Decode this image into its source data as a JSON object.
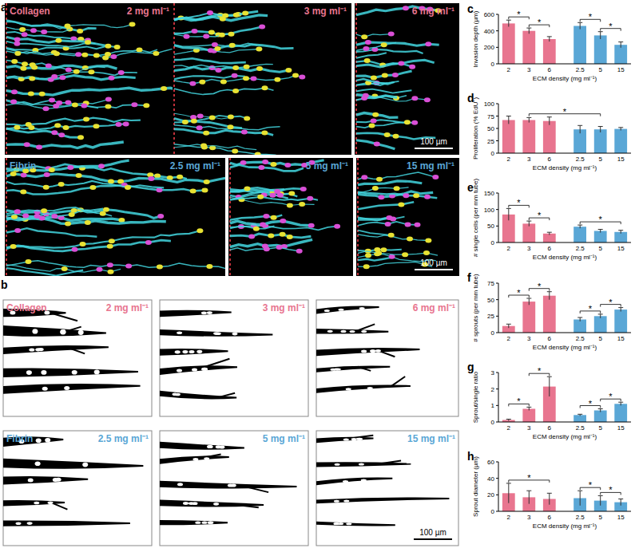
{
  "image_panels": {
    "a": {
      "panel": "a",
      "scale_bar": "100 µm",
      "rows": [
        {
          "material": "Collagen",
          "color": "#e8758f",
          "densities": [
            "2 mg ml⁻¹",
            "3 mg ml⁻¹",
            "6 mg ml⁻¹"
          ]
        },
        {
          "material": "Fibrin",
          "color": "#5aa7d6",
          "densities": [
            "2.5 mg ml⁻¹",
            "5 mg ml⁻¹",
            "15 mg ml⁻¹"
          ]
        }
      ]
    },
    "b": {
      "panel": "b",
      "scale_bar": "100 µm",
      "rows": [
        {
          "material": "Collagen",
          "color": "#e8758f",
          "densities": [
            "2 mg ml⁻¹",
            "3 mg ml⁻¹",
            "6 mg ml⁻¹"
          ]
        },
        {
          "material": "Fibrin",
          "color": "#5aa7d6",
          "densities": [
            "2.5 mg ml⁻¹",
            "5 mg ml⁻¹",
            "15 mg ml⁻¹"
          ]
        }
      ]
    }
  },
  "chart_data": [
    {
      "type": "bar",
      "panel": "c",
      "y_label": "Invasion depth (µm)",
      "x_label": "ECM density (mg ml⁻¹)",
      "categories": [
        "2",
        "3",
        "6",
        "2.5",
        "5",
        "15"
      ],
      "values": [
        490,
        400,
        300,
        460,
        345,
        230
      ],
      "errors": [
        40,
        35,
        30,
        40,
        45,
        35
      ],
      "colors": [
        "#e8758f",
        "#e8758f",
        "#e8758f",
        "#5aa7d6",
        "#5aa7d6",
        "#5aa7d6"
      ],
      "ylim": [
        0,
        600
      ],
      "yticks": [
        0,
        200,
        400,
        600
      ],
      "annotations": [
        {
          "text": "*",
          "between": [
            0,
            1
          ]
        },
        {
          "text": "*",
          "between": [
            1,
            2
          ]
        },
        {
          "text": "*",
          "between": [
            3,
            4
          ]
        },
        {
          "text": "*",
          "between": [
            4,
            5
          ]
        }
      ]
    },
    {
      "type": "bar",
      "panel": "d",
      "y_label": "Proliferation (% EdU⁺)",
      "x_label": "ECM density (mg ml⁻¹)",
      "categories": [
        "2",
        "3",
        "6",
        "2.5",
        "5",
        "15"
      ],
      "values": [
        67,
        67,
        65,
        48,
        48,
        49
      ],
      "errors": [
        8,
        5,
        8,
        8,
        6,
        3
      ],
      "colors": [
        "#e8758f",
        "#e8758f",
        "#e8758f",
        "#5aa7d6",
        "#5aa7d6",
        "#5aa7d6"
      ],
      "ylim": [
        0,
        100
      ],
      "yticks": [
        0,
        25,
        50,
        75,
        100
      ],
      "annotations": [
        {
          "text": "*",
          "between": [
            1,
            4
          ]
        }
      ]
    },
    {
      "type": "bar",
      "panel": "e",
      "y_label": "# single cells (per mm tube)",
      "x_label": "ECM density (mg ml⁻¹)",
      "categories": [
        "2",
        "3",
        "6",
        "2.5",
        "5",
        "15"
      ],
      "values": [
        85,
        57,
        27,
        48,
        35,
        32
      ],
      "errors": [
        18,
        8,
        4,
        5,
        5,
        5
      ],
      "colors": [
        "#e8758f",
        "#e8758f",
        "#e8758f",
        "#5aa7d6",
        "#5aa7d6",
        "#5aa7d6"
      ],
      "ylim": [
        0,
        150
      ],
      "yticks": [
        0,
        50,
        100,
        150
      ],
      "annotations": [
        {
          "text": "*",
          "between": [
            0,
            1
          ]
        },
        {
          "text": "*",
          "between": [
            1,
            2
          ]
        },
        {
          "text": "*",
          "between": [
            3,
            5
          ]
        }
      ]
    },
    {
      "type": "bar",
      "panel": "f",
      "y_label": "# sprouts (per mm tube)",
      "x_label": "ECM density (mg ml⁻¹)",
      "categories": [
        "2",
        "3",
        "6",
        "2.5",
        "5",
        "15"
      ],
      "values": [
        10,
        47,
        56,
        20,
        25,
        35
      ],
      "errors": [
        3,
        5,
        6,
        3,
        3,
        3
      ],
      "colors": [
        "#e8758f",
        "#e8758f",
        "#e8758f",
        "#5aa7d6",
        "#5aa7d6",
        "#5aa7d6"
      ],
      "ylim": [
        0,
        75
      ],
      "yticks": [
        0,
        25,
        50,
        75
      ],
      "annotations": [
        {
          "text": "*",
          "between": [
            0,
            1
          ]
        },
        {
          "text": "*",
          "between": [
            1,
            2
          ]
        },
        {
          "text": "*",
          "between": [
            3,
            4
          ]
        },
        {
          "text": "*",
          "between": [
            4,
            5
          ]
        }
      ]
    },
    {
      "type": "bar",
      "panel": "g",
      "y_label": "Sprout/single ratio",
      "x_label": "ECM density (mg ml⁻¹)",
      "categories": [
        "2",
        "3",
        "6",
        "2.5",
        "5",
        "15"
      ],
      "values": [
        0.12,
        0.8,
        2.15,
        0.42,
        0.7,
        1.1
      ],
      "errors": [
        0.05,
        0.1,
        0.6,
        0.05,
        0.1,
        0.1
      ],
      "colors": [
        "#e8758f",
        "#e8758f",
        "#e8758f",
        "#5aa7d6",
        "#5aa7d6",
        "#5aa7d6"
      ],
      "ylim": [
        0,
        3
      ],
      "yticks": [
        0,
        1,
        2,
        3
      ],
      "annotations": [
        {
          "text": "*",
          "between": [
            0,
            1
          ]
        },
        {
          "text": "*",
          "between": [
            1,
            2
          ]
        },
        {
          "text": "*",
          "between": [
            3,
            4
          ]
        },
        {
          "text": "*",
          "between": [
            4,
            5
          ]
        }
      ]
    },
    {
      "type": "bar",
      "panel": "h",
      "y_label": "Sprout diameter (µm)",
      "x_label": "ECM density (mg ml⁻¹)",
      "categories": [
        "2",
        "3",
        "6",
        "2.5",
        "5",
        "15"
      ],
      "values": [
        22,
        17,
        15,
        16,
        13,
        11
      ],
      "errors": [
        12,
        8,
        7,
        9,
        6,
        4
      ],
      "colors": [
        "#e8758f",
        "#e8758f",
        "#e8758f",
        "#5aa7d6",
        "#5aa7d6",
        "#5aa7d6"
      ],
      "ylim": [
        0,
        60
      ],
      "yticks": [
        0,
        20,
        40,
        60
      ],
      "annotations": [
        {
          "text": "*",
          "between": [
            0,
            2
          ]
        },
        {
          "text": "*",
          "between": [
            3,
            4
          ]
        },
        {
          "text": "*",
          "between": [
            4,
            5
          ]
        }
      ]
    }
  ]
}
